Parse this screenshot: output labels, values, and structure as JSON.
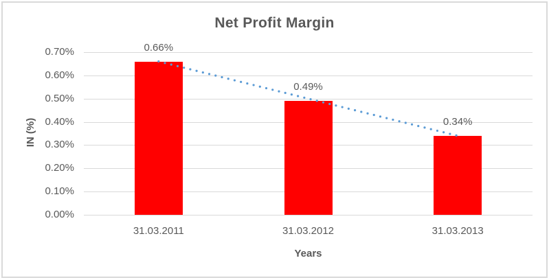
{
  "colors": {
    "bar": "#FF0000",
    "trendline": "#5B9BD5",
    "text": "#595959",
    "gridline": "#D9D9D9",
    "frame_border": "#D9D9D9",
    "background": "#FFFFFF"
  },
  "chart_data": {
    "type": "bar",
    "title": "Net Profit Margin",
    "categories": [
      "31.03.2011",
      "31.03.2012",
      "31.03.2013"
    ],
    "values": [
      0.66,
      0.49,
      0.34
    ],
    "data_labels": [
      "0.66%",
      "0.49%",
      "0.34%"
    ],
    "xlabel": "Years",
    "ylabel": "IN (%)",
    "ylim": [
      0,
      0.7
    ],
    "yticks": [
      {
        "value": 0.0,
        "label": "0.00%"
      },
      {
        "value": 0.1,
        "label": "0.10%"
      },
      {
        "value": 0.2,
        "label": "0.20%"
      },
      {
        "value": 0.3,
        "label": "0.30%"
      },
      {
        "value": 0.4,
        "label": "0.40%"
      },
      {
        "value": 0.5,
        "label": "0.50%"
      },
      {
        "value": 0.6,
        "label": "0.60%"
      },
      {
        "value": 0.7,
        "label": "0.70%"
      }
    ],
    "grid": true,
    "legend": false,
    "trendline": {
      "type": "linear",
      "style": "dotted",
      "color": "#5B9BD5"
    }
  }
}
